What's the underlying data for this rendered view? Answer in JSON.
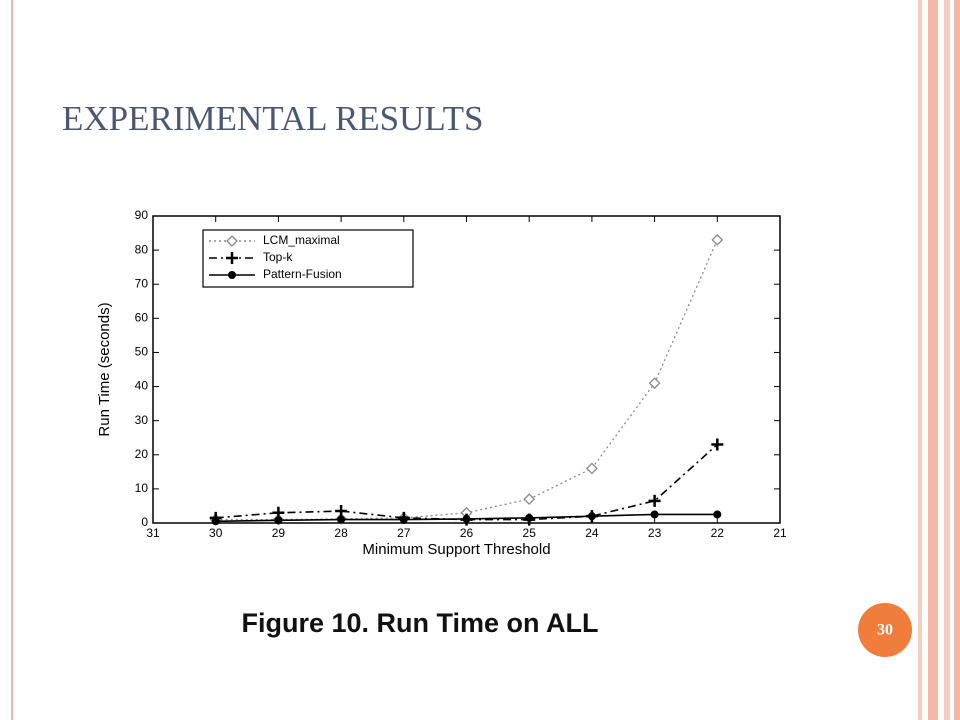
{
  "slide": {
    "title": "EXPERIMENTAL RESULTS",
    "caption": "Figure 10. Run Time on ALL",
    "number": "30"
  },
  "chart_data": {
    "type": "line",
    "x": [
      30,
      29,
      28,
      27,
      26,
      25,
      24,
      23,
      22
    ],
    "xlim": [
      31,
      21
    ],
    "xticks": [
      31,
      30,
      29,
      28,
      27,
      26,
      25,
      24,
      23,
      22,
      21
    ],
    "ylim": [
      0,
      90
    ],
    "yticks": [
      0,
      10,
      20,
      30,
      40,
      50,
      60,
      70,
      80,
      90
    ],
    "xlabel": "Minimum Support Threshold",
    "ylabel": "Run Time (seconds)",
    "grid": false,
    "legend": "upper left",
    "series": [
      {
        "name": "LCM_maximal",
        "color": "#8a8a8a",
        "marker": "diamond",
        "dash": "dotted",
        "values": [
          1,
          1,
          1.2,
          1.5,
          3,
          7,
          16,
          41,
          83
        ]
      },
      {
        "name": "Top-k",
        "color": "#000000",
        "marker": "plus",
        "dash": "dashdot",
        "values": [
          1.5,
          3,
          3.5,
          1.5,
          1,
          1,
          2,
          6.5,
          23
        ]
      },
      {
        "name": "Pattern-Fusion",
        "color": "#000000",
        "marker": "circle",
        "dash": "solid",
        "values": [
          0.5,
          0.8,
          1,
          1,
          1.2,
          1.5,
          2,
          2.5,
          2.5
        ]
      }
    ]
  }
}
